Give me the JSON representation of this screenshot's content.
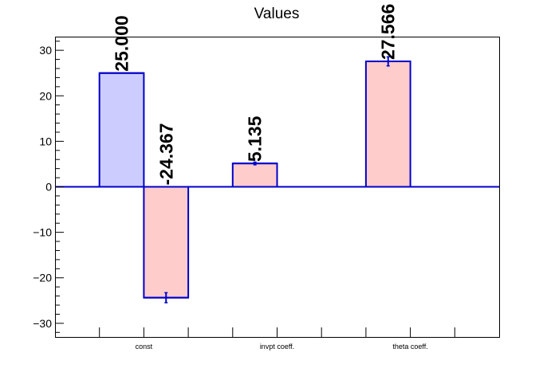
{
  "chart_data": {
    "type": "bar",
    "title": "Values",
    "xlabel": "",
    "ylabel": "",
    "ylim": [
      -33,
      33
    ],
    "grid": false,
    "y_ticks": [
      -30,
      -20,
      -10,
      0,
      10,
      20,
      30
    ],
    "y_tick_labels": [
      "−30",
      "−20",
      "−10",
      "0",
      "10",
      "20",
      "30"
    ],
    "category_labels": [
      "const",
      "invpt coeff.",
      "theta coeff."
    ],
    "bars": [
      {
        "category": "const",
        "value": 25.0,
        "error": 0,
        "label": "25.000",
        "color": "#ccccff"
      },
      {
        "category": "const",
        "value": -24.367,
        "error": 1.1,
        "label": "-24.367",
        "color": "#ffcccc"
      },
      {
        "category": "invpt coeff.",
        "value": 5.135,
        "error": 0.3,
        "label": "5.135",
        "color": "#ffcccc"
      },
      {
        "category": "theta coeff.",
        "value": 27.566,
        "error": 1.0,
        "label": "27.566",
        "color": "#ffcccc"
      }
    ],
    "colors": {
      "edge": "#0000cc",
      "axis": "#000000"
    }
  }
}
